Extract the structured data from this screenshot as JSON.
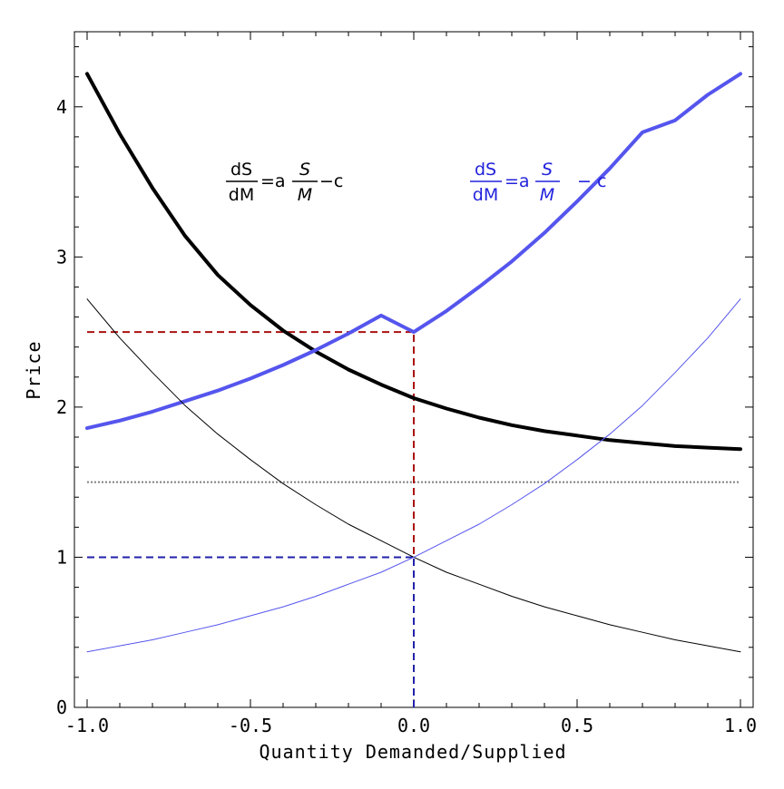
{
  "chart_data": {
    "type": "line",
    "title": "",
    "xlabel": "Quantity Demanded/Supplied",
    "ylabel": "Price",
    "xlim": [
      -1.0,
      1.0
    ],
    "ylim": [
      0,
      4.5
    ],
    "x_ticks": [
      -1.0,
      -0.5,
      0.0,
      0.5,
      1.0
    ],
    "x_tick_labels": [
      "-1.0",
      "-0.5",
      "0.0",
      "0.5",
      "1.0"
    ],
    "y_ticks": [
      0,
      1,
      2,
      3,
      4
    ],
    "y_tick_labels": [
      "0",
      "1",
      "2",
      "3",
      "4"
    ],
    "grid": false,
    "x": [
      -1.0,
      -0.9,
      -0.8,
      -0.7,
      -0.6,
      -0.5,
      -0.4,
      -0.3,
      -0.2,
      -0.1,
      0.0,
      0.1,
      0.2,
      0.3,
      0.4,
      0.5,
      0.6,
      0.7,
      0.8,
      0.9,
      1.0
    ],
    "series": [
      {
        "name": "",
        "color": "#000000",
        "width": 4,
        "values": [
          4.22,
          3.82,
          3.46,
          3.14,
          2.88,
          2.68,
          2.51,
          2.37,
          2.25,
          2.15,
          2.06,
          1.99,
          1.93,
          1.88,
          1.84,
          1.81,
          1.78,
          1.76,
          1.74,
          1.73,
          1.72
        ]
      },
      {
        "name": "",
        "color": "#5555ee",
        "width": 4,
        "values": [
          1.86,
          1.91,
          1.97,
          2.04,
          2.11,
          2.19,
          2.28,
          2.38,
          2.49,
          2.61,
          2.5,
          2.64,
          2.8,
          2.97,
          3.16,
          3.37,
          3.59,
          3.83,
          3.91,
          4.08,
          4.22
        ]
      },
      {
        "name": "",
        "color": "#000000",
        "width": 1,
        "values": [
          2.72,
          2.46,
          2.23,
          2.01,
          1.82,
          1.65,
          1.49,
          1.35,
          1.22,
          1.11,
          1.0,
          0.9,
          0.82,
          0.74,
          0.67,
          0.61,
          0.55,
          0.5,
          0.45,
          0.41,
          0.37
        ]
      },
      {
        "name": "",
        "color": "#5555ee",
        "width": 1,
        "values": [
          0.37,
          0.41,
          0.45,
          0.5,
          0.55,
          0.61,
          0.67,
          0.74,
          0.82,
          0.9,
          1.0,
          1.11,
          1.22,
          1.35,
          1.49,
          1.65,
          1.82,
          2.01,
          2.23,
          2.46,
          2.72
        ]
      }
    ],
    "reference_lines": [
      {
        "orientation": "horizontal",
        "y": 1.5,
        "x_range": [
          -1.0,
          1.0
        ],
        "color": "#808080",
        "style": "dotted"
      },
      {
        "orientation": "horizontal",
        "y": 2.5,
        "x_range": [
          -1.0,
          0.0
        ],
        "color": "#aa1111",
        "style": "dashed"
      },
      {
        "orientation": "vertical",
        "x": 0.0,
        "y_range": [
          0,
          2.5
        ],
        "color": "#aa1111",
        "style": "dashed"
      },
      {
        "orientation": "horizontal",
        "y": 1.0,
        "x_range": [
          -1.0,
          0.0
        ],
        "color": "#2222aa",
        "style": "dashed"
      },
      {
        "orientation": "vertical",
        "x": 0.0,
        "y_range": [
          0,
          1.0
        ],
        "color": "#2222aa",
        "style": "dashed"
      }
    ],
    "annotations": [
      {
        "color": "#000000",
        "num": "dS",
        "den": "dM",
        "eq": "=a",
        "frac_num": "S",
        "frac_den": "M",
        "tail": "−c"
      },
      {
        "color": "#2222dd",
        "num": "dS",
        "den": "dM",
        "eq": "=a",
        "frac_num": "S",
        "frac_den": "M",
        "tail": "− c"
      }
    ]
  }
}
